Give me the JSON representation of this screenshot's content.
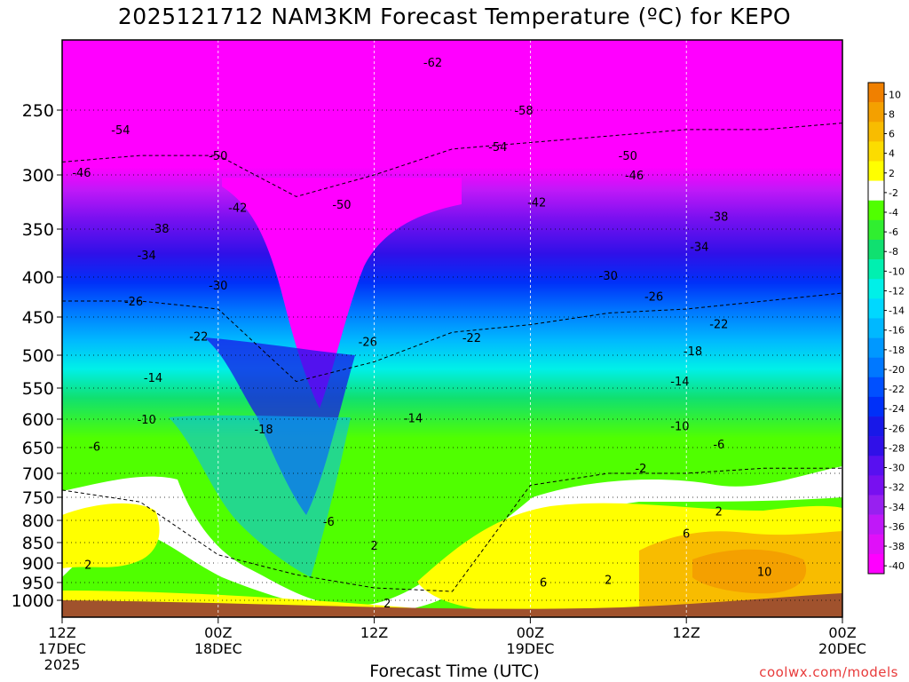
{
  "chart_data": {
    "type": "heatmap",
    "title": "2025121712 NAM3KM Forecast Temperature (ºC) for KEPO",
    "xlabel": "Forecast Time (UTC)",
    "ylabel": "",
    "credit": "coolwx.com/models",
    "y_axis": {
      "reversed": true,
      "ticks": [
        250,
        300,
        350,
        400,
        450,
        500,
        550,
        600,
        650,
        700,
        750,
        800,
        850,
        900,
        950,
        1000
      ]
    },
    "x_axis": {
      "ticks": [
        {
          "line1": "12Z",
          "line2": "17DEC",
          "line3": "2025"
        },
        {
          "line1": "00Z",
          "line2": "18DEC",
          "line3": ""
        },
        {
          "line1": "12Z",
          "line2": "",
          "line3": ""
        },
        {
          "line1": "00Z",
          "line2": "19DEC",
          "line3": ""
        },
        {
          "line1": "12Z",
          "line2": "",
          "line3": ""
        },
        {
          "line1": "00Z",
          "line2": "20DEC",
          "line3": ""
        }
      ]
    },
    "colorbar": {
      "ticks": [
        "10",
        "8",
        "6",
        "4",
        "2",
        "-2",
        "-4",
        "-6",
        "-8",
        "-10",
        "-12",
        "-14",
        "-16",
        "-18",
        "-20",
        "-22",
        "-24",
        "-26",
        "-28",
        "-30",
        "-32",
        "-34",
        "-36",
        "-38",
        "-40"
      ],
      "colors": [
        "#f08000",
        "#f4a000",
        "#f8bc00",
        "#fcdc00",
        "#ffff00",
        "#ffffff",
        "#50ff00",
        "#30ee30",
        "#10e070",
        "#00f0b0",
        "#00f0e8",
        "#00d8ff",
        "#00b8ff",
        "#0098ff",
        "#0078ff",
        "#0050ff",
        "#0030f8",
        "#1818e8",
        "#3010e8",
        "#5810f0",
        "#7810f0",
        "#9820f0",
        "#c018f8",
        "#e010f8",
        "#ff00ff"
      ]
    },
    "series": [
      {
        "name": "-2C isotherm (lower boundary of sub-freezing air)",
        "x": [
          0,
          6,
          12,
          18,
          24,
          30,
          36,
          42,
          48,
          54,
          60
        ],
        "y": [
          735,
          760,
          880,
          930,
          965,
          975,
          725,
          700,
          700,
          690,
          690
        ]
      },
      {
        "name": "-26C isotherm",
        "x": [
          0,
          6,
          12,
          18,
          24,
          30,
          36,
          42,
          48,
          54,
          60
        ],
        "y": [
          430,
          430,
          440,
          540,
          510,
          470,
          460,
          445,
          440,
          430,
          420
        ]
      },
      {
        "name": "-50C isotherm",
        "x": [
          0,
          6,
          12,
          18,
          24,
          30,
          36,
          42,
          48,
          54,
          60
        ],
        "y": [
          290,
          285,
          285,
          320,
          300,
          280,
          275,
          270,
          265,
          265,
          260
        ]
      }
    ],
    "contour_labels": [
      {
        "text": "-62",
        "x": 28.5,
        "p": 214
      },
      {
        "text": "-58",
        "x": 35.5,
        "p": 250
      },
      {
        "text": "-54",
        "x": 4.5,
        "p": 265
      },
      {
        "text": "-54",
        "x": 33.5,
        "p": 278
      },
      {
        "text": "-50",
        "x": 12.0,
        "p": 285
      },
      {
        "text": "-50",
        "x": 43.5,
        "p": 285
      },
      {
        "text": "-50",
        "x": 21.5,
        "p": 327
      },
      {
        "text": "-46",
        "x": 1.5,
        "p": 298
      },
      {
        "text": "-46",
        "x": 44.0,
        "p": 300
      },
      {
        "text": "-42",
        "x": 13.5,
        "p": 330
      },
      {
        "text": "-42",
        "x": 36.5,
        "p": 325
      },
      {
        "text": "-38",
        "x": 7.5,
        "p": 349
      },
      {
        "text": "-38",
        "x": 50.5,
        "p": 338
      },
      {
        "text": "-34",
        "x": 6.5,
        "p": 377
      },
      {
        "text": "-34",
        "x": 49.0,
        "p": 368
      },
      {
        "text": "-30",
        "x": 12.0,
        "p": 410
      },
      {
        "text": "-30",
        "x": 42.0,
        "p": 398
      },
      {
        "text": "-26",
        "x": 5.5,
        "p": 430
      },
      {
        "text": "-26",
        "x": 45.5,
        "p": 424
      },
      {
        "text": "-26",
        "x": 23.5,
        "p": 482
      },
      {
        "text": "-22",
        "x": 10.5,
        "p": 475
      },
      {
        "text": "-22",
        "x": 31.5,
        "p": 477
      },
      {
        "text": "-22",
        "x": 50.5,
        "p": 459
      },
      {
        "text": "-18",
        "x": 15.5,
        "p": 617
      },
      {
        "text": "-18",
        "x": 48.5,
        "p": 494
      },
      {
        "text": "-14",
        "x": 7.0,
        "p": 534
      },
      {
        "text": "-14",
        "x": 27.0,
        "p": 598
      },
      {
        "text": "-14",
        "x": 47.5,
        "p": 539
      },
      {
        "text": "-10",
        "x": 6.5,
        "p": 600
      },
      {
        "text": "-10",
        "x": 47.5,
        "p": 612
      },
      {
        "text": "-6",
        "x": 2.5,
        "p": 648
      },
      {
        "text": "-6",
        "x": 20.5,
        "p": 802
      },
      {
        "text": "-6",
        "x": 50.5,
        "p": 644
      },
      {
        "text": "-2",
        "x": 44.5,
        "p": 690
      },
      {
        "text": "2",
        "x": 2.0,
        "p": 903
      },
      {
        "text": "2",
        "x": 24.0,
        "p": 856
      },
      {
        "text": "2",
        "x": 25.0,
        "p": 1008
      },
      {
        "text": "2",
        "x": 42.0,
        "p": 942
      },
      {
        "text": "2",
        "x": 50.5,
        "p": 780
      },
      {
        "text": "6",
        "x": 37.0,
        "p": 949
      },
      {
        "text": "6",
        "x": 48.0,
        "p": 829
      },
      {
        "text": "10",
        "x": 54.0,
        "p": 922
      }
    ]
  }
}
